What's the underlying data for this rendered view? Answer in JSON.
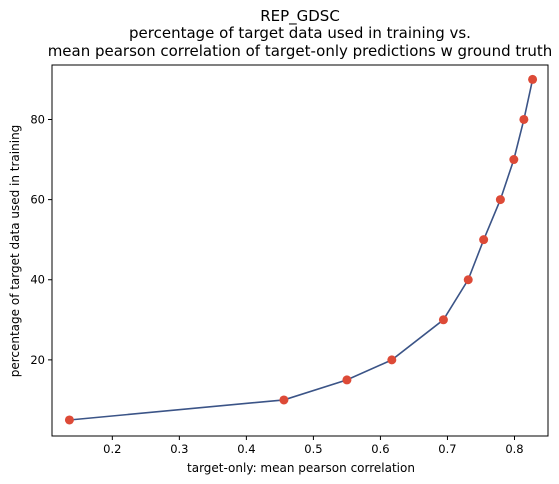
{
  "chart_data": {
    "type": "line",
    "title": [
      "REP_GDSC",
      "percentage of target data used in training vs.",
      "mean pearson correlation of target-only predictions w ground truth"
    ],
    "xlabel": "target-only: mean pearson correlation",
    "ylabel": "percentage of target data used in training",
    "xlim": [
      0.11,
      0.85
    ],
    "ylim": [
      1,
      93.6
    ],
    "xticks": [
      0.2,
      0.3,
      0.4,
      0.5,
      0.6,
      0.7,
      0.8
    ],
    "xtick_labels": [
      "0.2",
      "0.3",
      "0.4",
      "0.5",
      "0.6",
      "0.7",
      "0.8"
    ],
    "yticks": [
      20,
      40,
      60,
      80
    ],
    "ytick_labels": [
      "20",
      "40",
      "60",
      "80"
    ],
    "grid": false,
    "series": [
      {
        "x": [
          0.136,
          0.456,
          0.55,
          0.617,
          0.694,
          0.731,
          0.754,
          0.779,
          0.799,
          0.814,
          0.827
        ],
        "y": [
          5,
          10,
          15,
          20,
          30,
          40,
          50,
          60,
          70,
          80,
          90
        ],
        "line_color": "#3b5487",
        "marker_color": "#dd4a37"
      }
    ]
  }
}
